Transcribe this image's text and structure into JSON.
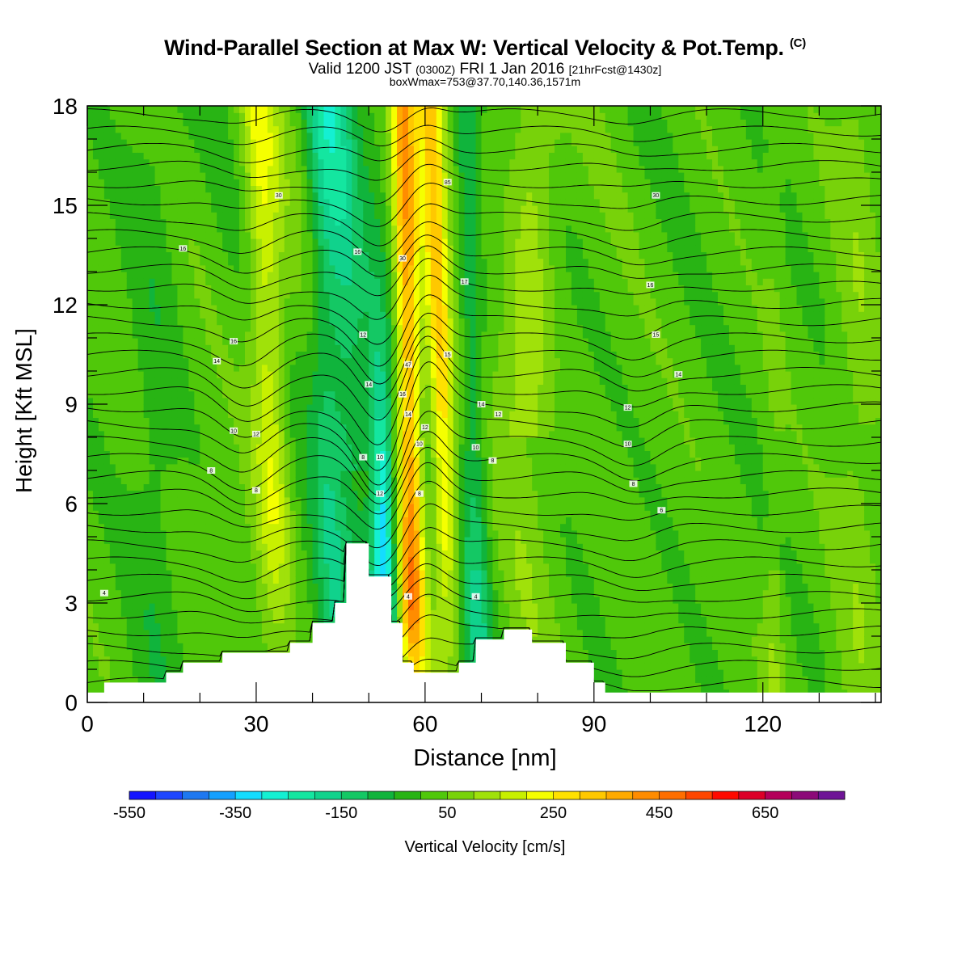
{
  "header": {
    "title": "Wind-Parallel Section at Max W: Vertical Velocity & Pot.Temp.",
    "copyright": "(C)",
    "valid_prefix": "Valid 1200 JST",
    "valid_utc": "(0300Z)",
    "valid_date": "FRI 1 Jan 2016",
    "forecast": "[21hrFcst@1430z]",
    "subtitle": "boxWmax=753@37.70,140.36,1571m"
  },
  "chart_data": {
    "type": "heatmap",
    "xlabel": "Distance [nm]",
    "ylabel": "Height [Kft MSL]",
    "xlim": [
      0,
      141
    ],
    "ylim": [
      0,
      18
    ],
    "x_ticks": [
      "0",
      "30",
      "60",
      "90",
      "120"
    ],
    "y_ticks": [
      "0",
      "3",
      "6",
      "9",
      "12",
      "15",
      "18"
    ],
    "colorbar": {
      "label": "Vertical Velocity [cm/s]",
      "tick_labels": [
        "-550",
        "-350",
        "-150",
        "50",
        "250",
        "450",
        "650"
      ],
      "min": -550,
      "max": 750,
      "step": 50,
      "colors": [
        "#1414ff",
        "#1e46ff",
        "#1e78f0",
        "#14a0ff",
        "#14dcff",
        "#14f0d2",
        "#14e6a0",
        "#10d28c",
        "#14c864",
        "#10b43c",
        "#28b414",
        "#50c80a",
        "#78d20a",
        "#a0e10a",
        "#c8f000",
        "#f5ff00",
        "#ffe100",
        "#ffc800",
        "#ffaa00",
        "#ff8c00",
        "#ff6e00",
        "#ff4600",
        "#ff0a00",
        "#dc0028",
        "#b4005a",
        "#8c0a78",
        "#6e1496"
      ]
    },
    "terrain_kft": [
      [
        0,
        0.3
      ],
      [
        3,
        0.3
      ],
      [
        3,
        0.6
      ],
      [
        14,
        0.6
      ],
      [
        14,
        0.9
      ],
      [
        17,
        0.9
      ],
      [
        17,
        1.2
      ],
      [
        24,
        1.2
      ],
      [
        24,
        1.5
      ],
      [
        36,
        1.5
      ],
      [
        36,
        1.8
      ],
      [
        40,
        1.8
      ],
      [
        40,
        2.4
      ],
      [
        44,
        2.4
      ],
      [
        44,
        3.0
      ],
      [
        46,
        3.0
      ],
      [
        46,
        4.8
      ],
      [
        50,
        4.8
      ],
      [
        50,
        3.8
      ],
      [
        54,
        3.8
      ],
      [
        54,
        2.4
      ],
      [
        56,
        2.4
      ],
      [
        56,
        1.2
      ],
      [
        58,
        1.2
      ],
      [
        58,
        0.9
      ],
      [
        66,
        0.9
      ],
      [
        66,
        1.2
      ],
      [
        69,
        1.2
      ],
      [
        69,
        1.9
      ],
      [
        74,
        1.9
      ],
      [
        74,
        2.2
      ],
      [
        79,
        2.2
      ],
      [
        79,
        1.8
      ],
      [
        85,
        1.8
      ],
      [
        85,
        1.2
      ],
      [
        90,
        1.2
      ],
      [
        90,
        0.6
      ],
      [
        92,
        0.6
      ],
      [
        92,
        0.3
      ],
      [
        141,
        0.3
      ]
    ],
    "updraft_max": 753,
    "theta_label_samples": [
      {
        "x": 3,
        "y": 3.3,
        "text": "4"
      },
      {
        "x": 22,
        "y": 7.0,
        "text": "8"
      },
      {
        "x": 26,
        "y": 8.2,
        "text": "10"
      },
      {
        "x": 23,
        "y": 10.3,
        "text": "14"
      },
      {
        "x": 26,
        "y": 10.9,
        "text": "16"
      },
      {
        "x": 17,
        "y": 13.7,
        "text": "16"
      },
      {
        "x": 34,
        "y": 15.3,
        "text": "30"
      },
      {
        "x": 30,
        "y": 8.1,
        "text": "12"
      },
      {
        "x": 30,
        "y": 6.4,
        "text": "8"
      },
      {
        "x": 48,
        "y": 13.6,
        "text": "16"
      },
      {
        "x": 49,
        "y": 11.1,
        "text": "12"
      },
      {
        "x": 50,
        "y": 9.6,
        "text": "14"
      },
      {
        "x": 49,
        "y": 7.4,
        "text": "8"
      },
      {
        "x": 52,
        "y": 7.4,
        "text": "10"
      },
      {
        "x": 52,
        "y": 6.3,
        "text": "12"
      },
      {
        "x": 56,
        "y": 13.4,
        "text": "30"
      },
      {
        "x": 64,
        "y": 15.7,
        "text": "85"
      },
      {
        "x": 57,
        "y": 10.2,
        "text": "47"
      },
      {
        "x": 56,
        "y": 9.3,
        "text": "16"
      },
      {
        "x": 57,
        "y": 8.7,
        "text": "14"
      },
      {
        "x": 59,
        "y": 7.8,
        "text": "10"
      },
      {
        "x": 60,
        "y": 8.3,
        "text": "12"
      },
      {
        "x": 59,
        "y": 6.3,
        "text": "8"
      },
      {
        "x": 57,
        "y": 3.2,
        "text": "4"
      },
      {
        "x": 67,
        "y": 12.7,
        "text": "17"
      },
      {
        "x": 64,
        "y": 10.5,
        "text": "15"
      },
      {
        "x": 70,
        "y": 9.0,
        "text": "14"
      },
      {
        "x": 73,
        "y": 8.7,
        "text": "12"
      },
      {
        "x": 69,
        "y": 7.7,
        "text": "10"
      },
      {
        "x": 72,
        "y": 7.3,
        "text": "8"
      },
      {
        "x": 69,
        "y": 3.2,
        "text": "4"
      },
      {
        "x": 101,
        "y": 15.3,
        "text": "30"
      },
      {
        "x": 100,
        "y": 12.6,
        "text": "16"
      },
      {
        "x": 101,
        "y": 11.1,
        "text": "15"
      },
      {
        "x": 105,
        "y": 9.9,
        "text": "14"
      },
      {
        "x": 96,
        "y": 8.9,
        "text": "12"
      },
      {
        "x": 96,
        "y": 7.8,
        "text": "10"
      },
      {
        "x": 97,
        "y": 6.6,
        "text": "8"
      },
      {
        "x": 102,
        "y": 5.8,
        "text": "6"
      }
    ]
  }
}
